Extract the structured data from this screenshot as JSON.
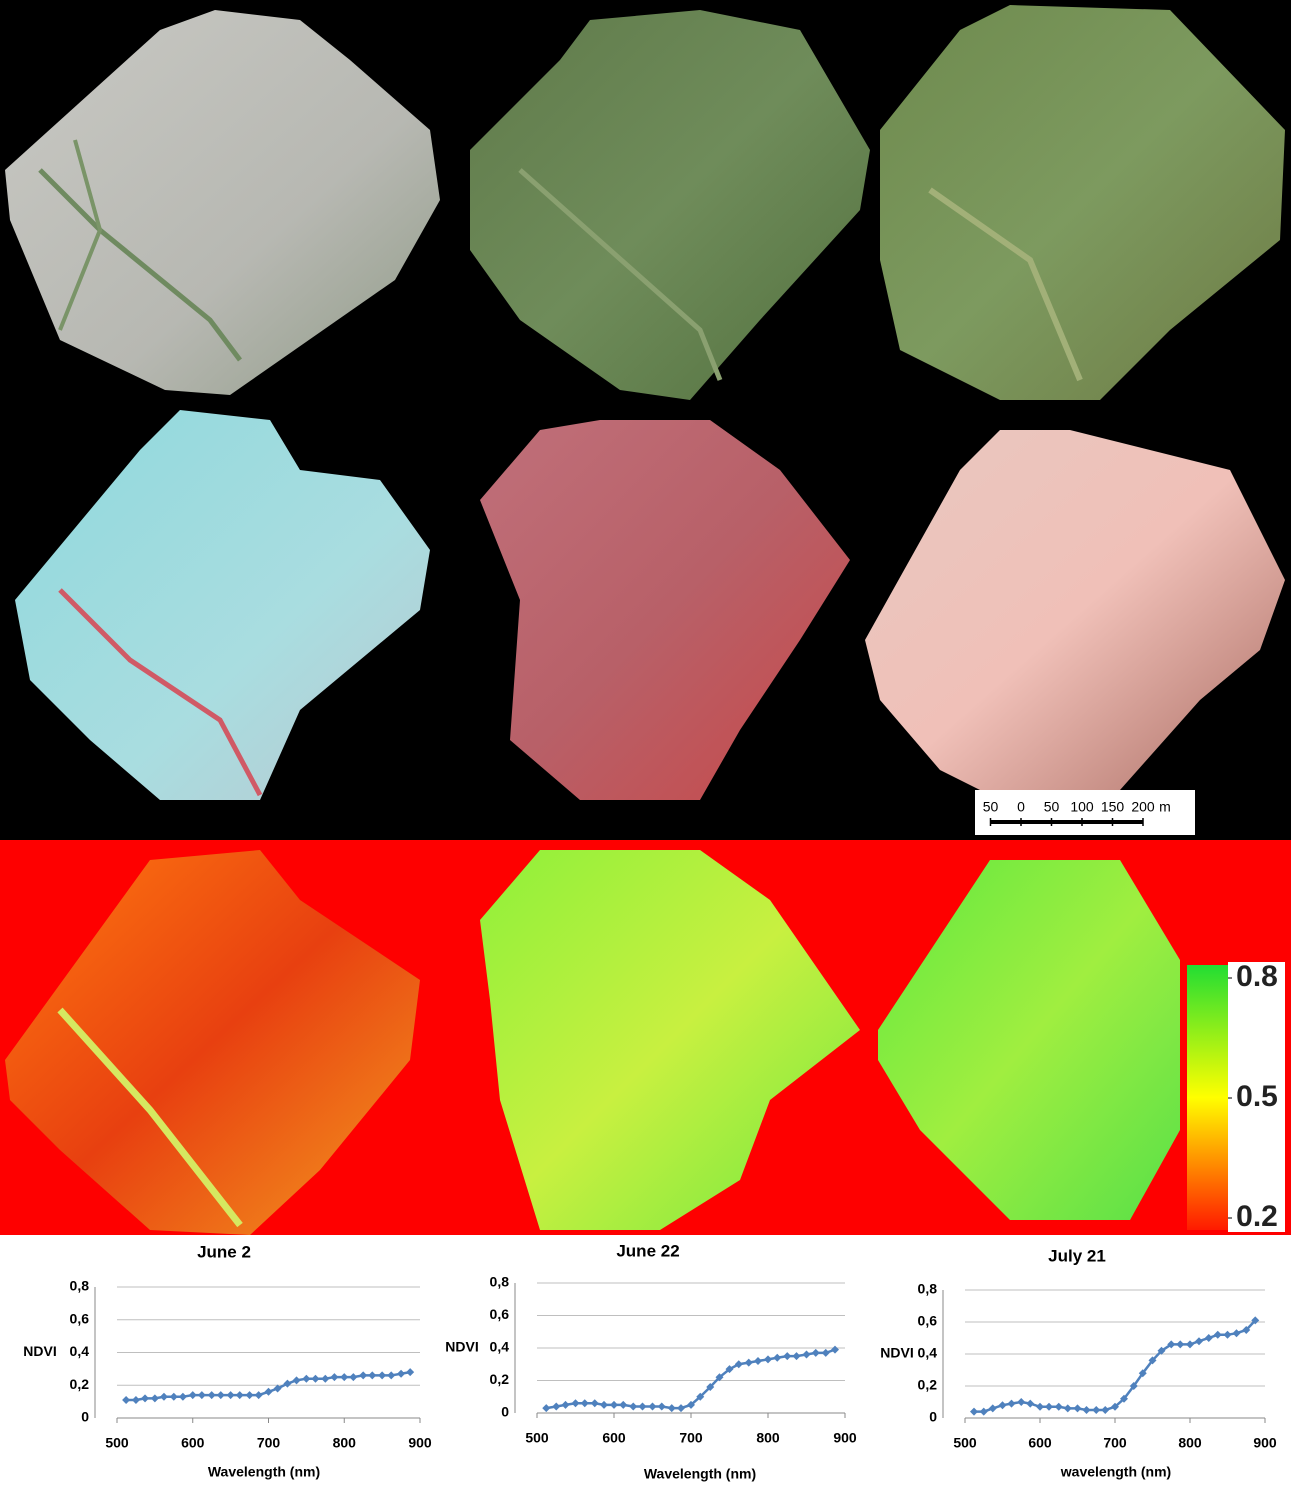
{
  "chart_data": [
    {
      "type": "line",
      "title": "June 2",
      "xlabel": "Wavelength (nm)",
      "ylabel": "NDVI",
      "x": [
        512,
        525,
        537,
        550,
        562,
        575,
        587,
        600,
        612,
        625,
        637,
        650,
        662,
        675,
        687,
        700,
        712,
        725,
        737,
        750,
        762,
        775,
        787,
        800,
        812,
        825,
        837,
        850,
        862,
        875,
        887
      ],
      "series": [
        {
          "color": "#4f81bd",
          "values": [
            0.11,
            0.11,
            0.12,
            0.12,
            0.13,
            0.13,
            0.13,
            0.14,
            0.14,
            0.14,
            0.14,
            0.14,
            0.14,
            0.14,
            0.14,
            0.16,
            0.18,
            0.21,
            0.23,
            0.24,
            0.24,
            0.24,
            0.25,
            0.25,
            0.25,
            0.26,
            0.26,
            0.26,
            0.26,
            0.27,
            0.28
          ]
        }
      ],
      "xlim": [
        500,
        900
      ],
      "xticks": [
        500,
        600,
        700,
        800,
        900
      ],
      "ylim": [
        0,
        0.8
      ],
      "yticks": [
        0,
        {
          "value": 0.2,
          "label": "0,2"
        },
        {
          "value": 0.4,
          "label": "0,4"
        },
        {
          "value": 0.6,
          "label": "0,6"
        },
        {
          "value": 0.8,
          "label": "0,8"
        }
      ],
      "grid": true
    },
    {
      "type": "line",
      "title": "June 22",
      "xlabel": "Wavelength (nm)",
      "ylabel": "NDVI",
      "x": [
        512,
        525,
        537,
        550,
        562,
        575,
        587,
        600,
        612,
        625,
        637,
        650,
        662,
        675,
        687,
        700,
        712,
        725,
        737,
        750,
        762,
        775,
        787,
        800,
        812,
        825,
        837,
        850,
        862,
        875,
        887
      ],
      "series": [
        {
          "color": "#4f81bd",
          "values": [
            0.03,
            0.04,
            0.05,
            0.06,
            0.06,
            0.06,
            0.05,
            0.05,
            0.05,
            0.04,
            0.04,
            0.04,
            0.04,
            0.03,
            0.03,
            0.05,
            0.1,
            0.16,
            0.22,
            0.27,
            0.3,
            0.31,
            0.32,
            0.33,
            0.34,
            0.35,
            0.35,
            0.36,
            0.37,
            0.37,
            0.39
          ]
        }
      ],
      "xlim": [
        500,
        900
      ],
      "xticks": [
        500,
        600,
        700,
        800,
        900
      ],
      "ylim": [
        0,
        0.8
      ],
      "yticks": [
        0,
        {
          "value": 0.2,
          "label": "0,2"
        },
        {
          "value": 0.4,
          "label": "0,4"
        },
        {
          "value": 0.6,
          "label": "0,6"
        },
        {
          "value": 0.8,
          "label": "0,8"
        }
      ],
      "grid": true
    },
    {
      "type": "line",
      "title": "July 21",
      "xlabel": "wavelength (nm)",
      "ylabel": "NDVI",
      "x": [
        512,
        525,
        537,
        550,
        562,
        575,
        587,
        600,
        612,
        625,
        637,
        650,
        662,
        675,
        687,
        700,
        712,
        725,
        737,
        750,
        762,
        775,
        787,
        800,
        812,
        825,
        837,
        850,
        862,
        875,
        887
      ],
      "series": [
        {
          "color": "#4f81bd",
          "values": [
            0.04,
            0.04,
            0.06,
            0.08,
            0.09,
            0.1,
            0.09,
            0.07,
            0.07,
            0.07,
            0.06,
            0.06,
            0.05,
            0.05,
            0.05,
            0.07,
            0.12,
            0.2,
            0.28,
            0.36,
            0.42,
            0.46,
            0.46,
            0.46,
            0.48,
            0.5,
            0.52,
            0.52,
            0.53,
            0.55,
            0.61
          ]
        }
      ],
      "xlim": [
        500,
        900
      ],
      "xticks": [
        500,
        600,
        700,
        800,
        900
      ],
      "ylim": [
        0,
        0.8
      ],
      "yticks": [
        0,
        {
          "value": 0.2,
          "label": "0,2"
        },
        {
          "value": 0.4,
          "label": "0,4"
        },
        {
          "value": 0.6,
          "label": "0,6"
        },
        {
          "value": 0.8,
          "label": "0,8"
        }
      ],
      "grid": true
    }
  ],
  "colorbar": {
    "ticks": [
      0.8,
      0.5,
      0.2
    ]
  },
  "scale_bar": {
    "ticks": [
      {
        "value": -50,
        "label": "50"
      },
      0,
      50,
      100,
      150,
      200
    ],
    "unit": "m"
  }
}
